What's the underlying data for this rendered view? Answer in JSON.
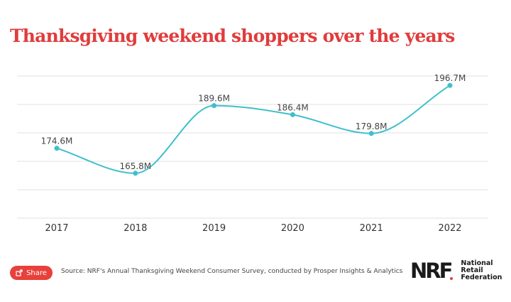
{
  "title": "Thanksgiving weekend shoppers over the years",
  "share_label": "Share",
  "source": "Source: NRF's Annual Thanksgiving Weekend Consumer Survey, conducted by Prosper Insights & Analytics",
  "logo": {
    "mark": "NRF",
    "lines": [
      "National",
      "Retail",
      "Federation"
    ]
  },
  "colors": {
    "title": "#e03c3c",
    "line": "#3fbfcc",
    "share": "#e8403a",
    "grid": "#e0e0e0"
  },
  "chart_data": {
    "type": "line",
    "categories": [
      "2017",
      "2018",
      "2019",
      "2020",
      "2021",
      "2022"
    ],
    "series": [
      {
        "values": [
          174.6,
          165.8,
          189.6,
          186.4,
          179.8,
          196.7
        ],
        "labels": [
          "174.6M",
          "165.8M",
          "189.6M",
          "186.4M",
          "179.8M",
          "196.7M"
        ]
      }
    ],
    "xlabel": "",
    "ylabel": "",
    "ylim": [
      150,
      200
    ],
    "grid": true,
    "line_style": "smooth"
  }
}
